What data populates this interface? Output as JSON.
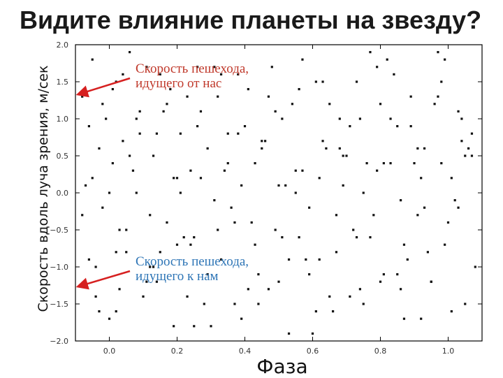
{
  "slide": {
    "title": "Видите влияние планеты на звезду?"
  },
  "annotations": {
    "away": "Скорость пешехода,\nидущего от нас",
    "toward": "Скорость пешехода,\nидущего к нам"
  },
  "colors": {
    "annotation_away": "#c0392b",
    "annotation_toward": "#2e75b6",
    "arrow": "#d62020",
    "points": "#111111"
  },
  "chart_data": {
    "type": "scatter",
    "title": "",
    "xlabel": "Фаза",
    "ylabel": "Скорость вдоль луча зрения, м/сек",
    "xlim": [
      -0.1,
      1.1
    ],
    "ylim": [
      -2.0,
      2.0
    ],
    "xticks": [
      0.0,
      0.2,
      0.4,
      0.6,
      0.8,
      1.0
    ],
    "xtick_labels": [
      "0.0",
      "0.2",
      "0.4",
      "0.6",
      "0.8",
      "1.0"
    ],
    "yticks": [
      -2.0,
      -1.5,
      -1.0,
      -0.5,
      0.0,
      0.5,
      1.0,
      1.5,
      2.0
    ],
    "ytick_labels": [
      "−2.0",
      "−1.5",
      "−1.0",
      "−0.5",
      "0.0",
      "0.5",
      "1.0",
      "1.5",
      "2.0"
    ],
    "grid": false,
    "series": [
      {
        "x": [
          -0.08,
          -0.07,
          -0.06,
          -0.05,
          -0.04,
          -0.03,
          -0.02,
          -0.01,
          0.0,
          0.01,
          0.02,
          0.03,
          -0.08,
          -0.06,
          -0.04,
          -0.02,
          0.0,
          0.02,
          0.04,
          0.06,
          0.05,
          0.07,
          0.09,
          0.11,
          0.13,
          0.15,
          0.17,
          0.19,
          0.21,
          0.23,
          0.25,
          0.27,
          0.29,
          0.31,
          0.33,
          0.35,
          0.37,
          0.39,
          0.41,
          0.43,
          0.45,
          0.47,
          0.49,
          0.51,
          0.53,
          0.55,
          0.57,
          0.59,
          0.61,
          0.63,
          0.65,
          0.67,
          0.69,
          0.71,
          0.73,
          0.75,
          0.77,
          0.79,
          0.81,
          0.83,
          0.85,
          0.87,
          0.89,
          0.91,
          0.93,
          0.95,
          0.97,
          0.99,
          1.01,
          1.03,
          1.05,
          1.07,
          0.08,
          0.12,
          0.18,
          0.22,
          0.26,
          0.3,
          0.34,
          0.38,
          0.42,
          0.46,
          0.5,
          0.54,
          0.58,
          0.62,
          0.66,
          0.7,
          0.74,
          0.78,
          0.82,
          0.86,
          0.9,
          0.94,
          0.98,
          1.02,
          1.06,
          0.1,
          0.14,
          0.16,
          0.2,
          0.24,
          0.28,
          0.32,
          0.36,
          0.4,
          0.44,
          0.48,
          0.52,
          0.56,
          0.6,
          0.64,
          0.68,
          0.72,
          0.76,
          0.8,
          0.84,
          0.88,
          0.92,
          0.96,
          1.0,
          1.04,
          1.08,
          0.03,
          0.06,
          0.11,
          0.15,
          0.19,
          0.23,
          0.27,
          0.31,
          0.35,
          0.39,
          0.43,
          0.47,
          0.51,
          0.55,
          0.59,
          0.63,
          0.67,
          0.71,
          0.75,
          0.79,
          0.83,
          0.87,
          0.91,
          0.95,
          0.99,
          1.03,
          1.07,
          -0.05,
          -0.03,
          0.01,
          0.05,
          0.09,
          0.13,
          0.17,
          0.21,
          0.25,
          0.29,
          0.33,
          0.37,
          0.41,
          0.45,
          0.49,
          0.53,
          0.57,
          0.61,
          0.65,
          0.69,
          0.73,
          0.77,
          0.81,
          0.85,
          0.89,
          0.93,
          0.97,
          1.01,
          1.05,
          0.02,
          0.08,
          0.14,
          0.2,
          0.26,
          0.32,
          0.38,
          0.44,
          0.5,
          0.56,
          0.62,
          0.68,
          0.74,
          0.8,
          0.86,
          0.92,
          0.98,
          1.04,
          0.04,
          0.12,
          0.24
        ],
        "y": [
          1.3,
          0.1,
          -0.9,
          1.8,
          -1.4,
          0.6,
          -0.2,
          1.0,
          -1.7,
          0.4,
          1.5,
          -0.5,
          -0.3,
          0.9,
          -1.0,
          1.2,
          0.0,
          -1.6,
          0.7,
          1.9,
          -0.8,
          0.3,
          1.1,
          -1.2,
          0.5,
          1.6,
          -0.4,
          -1.8,
          0.8,
          1.3,
          -0.6,
          0.2,
          -1.1,
          1.7,
          -0.9,
          0.4,
          -1.5,
          0.1,
          1.4,
          -0.7,
          0.6,
          -1.3,
          -0.5,
          1.0,
          -1.9,
          0.3,
          1.8,
          -0.2,
          -1.6,
          0.7,
          1.2,
          -0.8,
          0.5,
          -1.4,
          1.5,
          0.0,
          -0.6,
          1.7,
          -1.1,
          0.4,
          0.9,
          -1.7,
          1.3,
          -0.3,
          0.6,
          -1.2,
          1.9,
          -0.7,
          0.2,
          1.1,
          -1.5,
          0.8,
          0.0,
          -1.0,
          1.4,
          -0.6,
          0.9,
          -1.8,
          0.3,
          1.6,
          -0.4,
          0.7,
          -1.2,
          1.2,
          -0.9,
          0.2,
          -1.6,
          0.5,
          1.0,
          -0.3,
          1.8,
          -1.3,
          0.4,
          -0.8,
          1.5,
          -0.1,
          0.6,
          -1.4,
          0.8,
          1.1,
          -0.7,
          0.3,
          -1.5,
          1.3,
          -0.2,
          0.9,
          -1.1,
          1.7,
          0.1,
          -0.6,
          -1.9,
          0.6,
          1.0,
          -0.5,
          0.4,
          -1.2,
          1.6,
          -0.9,
          0.2,
          1.2,
          -0.4,
          0.7,
          -1.0,
          -1.3,
          0.5,
          1.7,
          -0.8,
          0.2,
          -1.4,
          1.1,
          -0.1,
          0.8,
          -1.7,
          0.4,
          1.3,
          -0.6,
          0.0,
          -1.1,
          1.5,
          -0.3,
          0.9,
          -1.5,
          0.3,
          1.0,
          -0.7,
          0.6,
          -1.2,
          1.8,
          -0.2,
          0.5,
          0.2,
          -1.6,
          1.4,
          -0.5,
          0.8,
          -1.0,
          1.2,
          0.0,
          -1.8,
          0.6,
          1.6,
          -0.4,
          -1.3,
          0.7,
          1.1,
          -0.9,
          0.3,
          1.5,
          -1.4,
          0.1,
          -0.6,
          1.9,
          0.4,
          -1.1,
          0.9,
          -0.2,
          1.3,
          -1.6,
          0.5,
          -0.8,
          1.0,
          -1.2,
          0.2,
          1.7,
          -0.5,
          0.8,
          -1.5,
          0.1,
          1.4,
          -0.9,
          0.6,
          -1.3,
          1.2,
          -0.1,
          -1.7,
          0.4,
          1.0,
          1.6,
          -0.3,
          -0.7
        ]
      }
    ]
  }
}
